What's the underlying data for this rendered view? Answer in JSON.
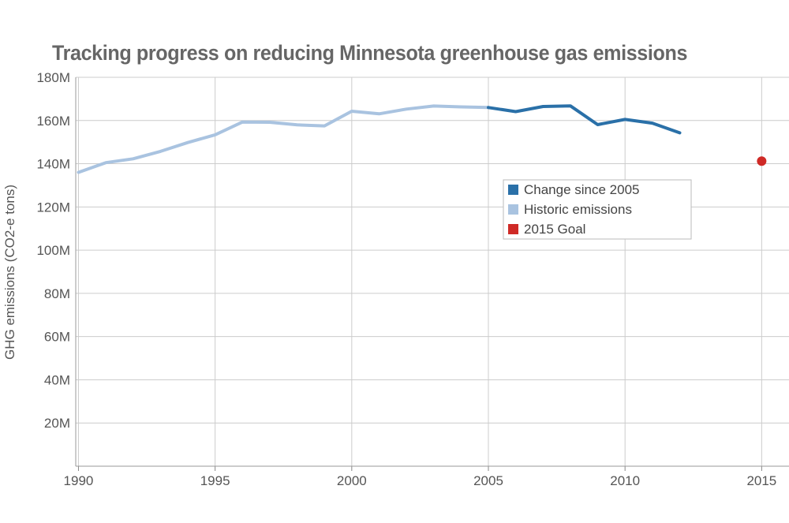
{
  "chart_data": {
    "type": "line",
    "title": "Tracking progress on reducing Minnesota greenhouse gas emissions",
    "xlabel": "",
    "ylabel": "GHG emissions (CO2-e tons)",
    "xlim": [
      1989.9,
      2016
    ],
    "ylim": [
      0,
      180000000
    ],
    "x_ticks": [
      1990,
      1995,
      2000,
      2005,
      2010,
      2015
    ],
    "x_tick_labels": [
      "1990",
      "1995",
      "2000",
      "2005",
      "2010",
      "2015"
    ],
    "y_ticks": [
      20000000,
      40000000,
      60000000,
      80000000,
      100000000,
      120000000,
      140000000,
      160000000,
      180000000
    ],
    "y_tick_labels": [
      "20M",
      "40M",
      "60M",
      "80M",
      "100M",
      "120M",
      "140M",
      "160M",
      "180M"
    ],
    "grid": true,
    "legend_position": "center-right",
    "series": [
      {
        "name": "Historic emissions",
        "color": "#a9c3e0",
        "x": [
          1990,
          1991,
          1992,
          1993,
          1994,
          1995,
          1996,
          1997,
          1998,
          1999,
          2000,
          2001,
          2002,
          2003,
          2004,
          2005
        ],
        "values": [
          136000000,
          140500000,
          142300000,
          145700000,
          149800000,
          153400000,
          159300000,
          159200000,
          158000000,
          157500000,
          164300000,
          163100000,
          165300000,
          166700000,
          166300000,
          166000000
        ]
      },
      {
        "name": "Change since 2005",
        "color": "#2a70a8",
        "x": [
          2005,
          2006,
          2007,
          2008,
          2009,
          2010,
          2011,
          2012
        ],
        "values": [
          166000000,
          164100000,
          166500000,
          166800000,
          158100000,
          160500000,
          158800000,
          154300000
        ]
      },
      {
        "name": "2015 Goal",
        "color": "#cf2a26",
        "type": "scatter",
        "x": [
          2015
        ],
        "values": [
          141200000
        ]
      }
    ],
    "legend": [
      {
        "label": "Change since 2005",
        "color": "#2a70a8"
      },
      {
        "label": "Historic emissions",
        "color": "#a9c3e0"
      },
      {
        "label": "2015 Goal",
        "color": "#cf2a26"
      }
    ]
  }
}
